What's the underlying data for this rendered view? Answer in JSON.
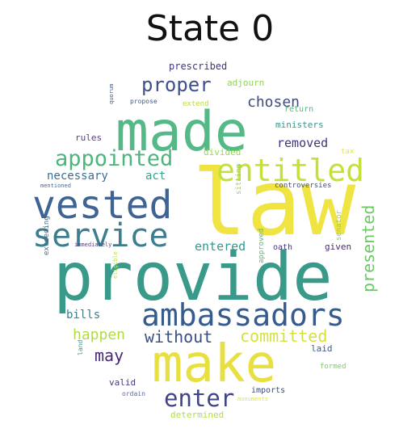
{
  "title": "State 0",
  "words": [
    {
      "text": "law",
      "color": "#f0e442"
    },
    {
      "text": "provide",
      "color": "#3a9a89"
    },
    {
      "text": "made",
      "color": "#54b986"
    },
    {
      "text": "make",
      "color": "#e8df41"
    },
    {
      "text": "vested",
      "color": "#3f6393"
    },
    {
      "text": "service",
      "color": "#3b7e8f"
    },
    {
      "text": "ambassadors",
      "color": "#365b8c"
    },
    {
      "text": "entitled",
      "color": "#c6e03a"
    },
    {
      "text": "appointed",
      "color": "#4fb57e"
    },
    {
      "text": "enter",
      "color": "#414487"
    },
    {
      "text": "proper",
      "color": "#3e4f89"
    },
    {
      "text": "presented",
      "color": "#6cc766"
    },
    {
      "text": "committed",
      "color": "#d5e23c"
    },
    {
      "text": "without",
      "color": "#3b4f84"
    },
    {
      "text": "happen",
      "color": "#b3dc41"
    },
    {
      "text": "may",
      "color": "#482a73"
    },
    {
      "text": "chosen",
      "color": "#3f4a82"
    },
    {
      "text": "removed",
      "color": "#44337a"
    },
    {
      "text": "entered",
      "color": "#2f9a8e"
    },
    {
      "text": "act",
      "color": "#37a28b"
    },
    {
      "text": "bills",
      "color": "#3d7d8f"
    },
    {
      "text": "necessary",
      "color": "#3c6d91"
    },
    {
      "text": "prescribed",
      "color": "#46337e"
    },
    {
      "text": "adjourn",
      "color": "#90d458"
    },
    {
      "text": "extend",
      "color": "#b9dc3e"
    },
    {
      "text": "propose",
      "color": "#3e5a8d"
    },
    {
      "text": "return",
      "color": "#56bb79"
    },
    {
      "text": "ministers",
      "color": "#37958e"
    },
    {
      "text": "divided",
      "color": "#9ad653"
    },
    {
      "text": "rules",
      "color": "#5a3e86"
    },
    {
      "text": "controversies",
      "color": "#3f4e8c"
    },
    {
      "text": "sitting",
      "color": "#9fd54e"
    },
    {
      "text": "oath",
      "color": "#44337b"
    },
    {
      "text": "given",
      "color": "#4b2c76"
    },
    {
      "text": "approved",
      "color": "#58b977"
    },
    {
      "text": "senator",
      "color": "#8fd35b"
    },
    {
      "text": "tax",
      "color": "#e4e33f"
    },
    {
      "text": "quorum",
      "color": "#3d5b8f"
    },
    {
      "text": "mentioned",
      "color": "#4e6a95"
    },
    {
      "text": "immediately",
      "color": "#5b3c84"
    },
    {
      "text": "exceeding",
      "color": "#3b6f91"
    },
    {
      "text": "eligible",
      "color": "#bfe04a"
    },
    {
      "text": "laid",
      "color": "#3b5b8e"
    },
    {
      "text": "land",
      "color": "#3c9a8d"
    },
    {
      "text": "valid",
      "color": "#433a82"
    },
    {
      "text": "formed",
      "color": "#7ecd63"
    },
    {
      "text": "imports",
      "color": "#3a4a85"
    },
    {
      "text": "ordain",
      "color": "#5a6b9a"
    },
    {
      "text": "monuments",
      "color": "#d7e35a"
    },
    {
      "text": "determined",
      "color": "#b3dc4a"
    }
  ]
}
